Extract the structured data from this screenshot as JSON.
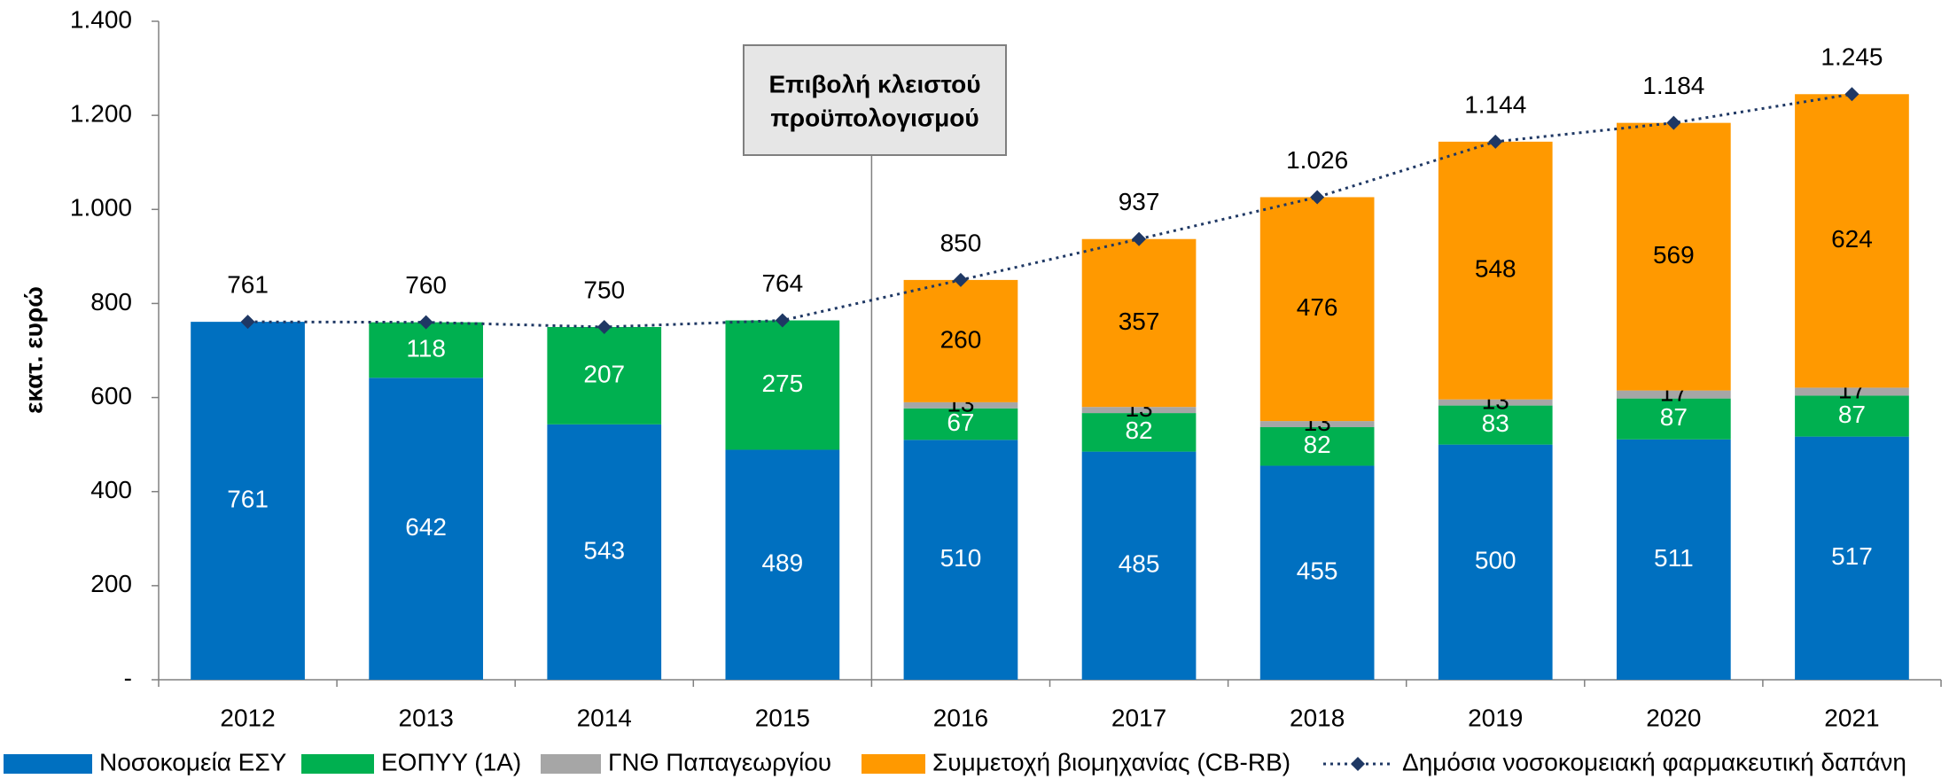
{
  "chart_data": {
    "type": "stacked_bar_line",
    "y_label": "εκατ. ευρώ",
    "annotation": [
      "Επιβολή κλειστού",
      "προϋπολογισμού"
    ],
    "categories": [
      "2012",
      "2013",
      "2014",
      "2015",
      "2016",
      "2017",
      "2018",
      "2019",
      "2020",
      "2021"
    ],
    "series": [
      {
        "name": "Νοσοκομεία ΕΣΥ",
        "color": "#0070c0",
        "label_color": "#ffffff",
        "values": [
          761,
          642,
          543,
          489,
          510,
          485,
          455,
          500,
          511,
          517
        ]
      },
      {
        "name": "ΕΟΠΥΥ (1Α)",
        "color": "#00b050",
        "label_color": "#ffffff",
        "values": [
          null,
          118,
          207,
          275,
          67,
          82,
          82,
          83,
          87,
          87
        ]
      },
      {
        "name": "ΓΝΘ Παπαγεωργίου",
        "color": "#a6a6a6",
        "label_color": "#000000",
        "values": [
          null,
          null,
          null,
          null,
          13,
          13,
          13,
          13,
          17,
          17
        ]
      },
      {
        "name": "Συμμετοχή βιομηχανίας (CB-RB)",
        "color": "#ff9900",
        "label_color": "#000000",
        "values": [
          null,
          null,
          null,
          null,
          260,
          357,
          476,
          548,
          569,
          624
        ]
      },
      {
        "name": "Δημόσια νοσοκομειακή φαρμακευτική δαπάνη",
        "type": "line",
        "color": "#1f3864",
        "values": [
          761,
          760,
          750,
          764,
          850,
          937,
          1026,
          1144,
          1184,
          1245
        ],
        "value_labels": [
          "761",
          "760",
          "750",
          "764",
          "850",
          "937",
          "1.026",
          "1.144",
          "1.184",
          "1.245"
        ]
      }
    ],
    "ylim": [
      0,
      1400
    ],
    "yticks": [
      {
        "value": 0,
        "label": "-"
      },
      200,
      400,
      600,
      800,
      {
        "value": 1000,
        "label": "1.000"
      },
      {
        "value": 1200,
        "label": "1.200"
      },
      {
        "value": 1400,
        "label": "1.400"
      }
    ],
    "legend": "bottom"
  }
}
